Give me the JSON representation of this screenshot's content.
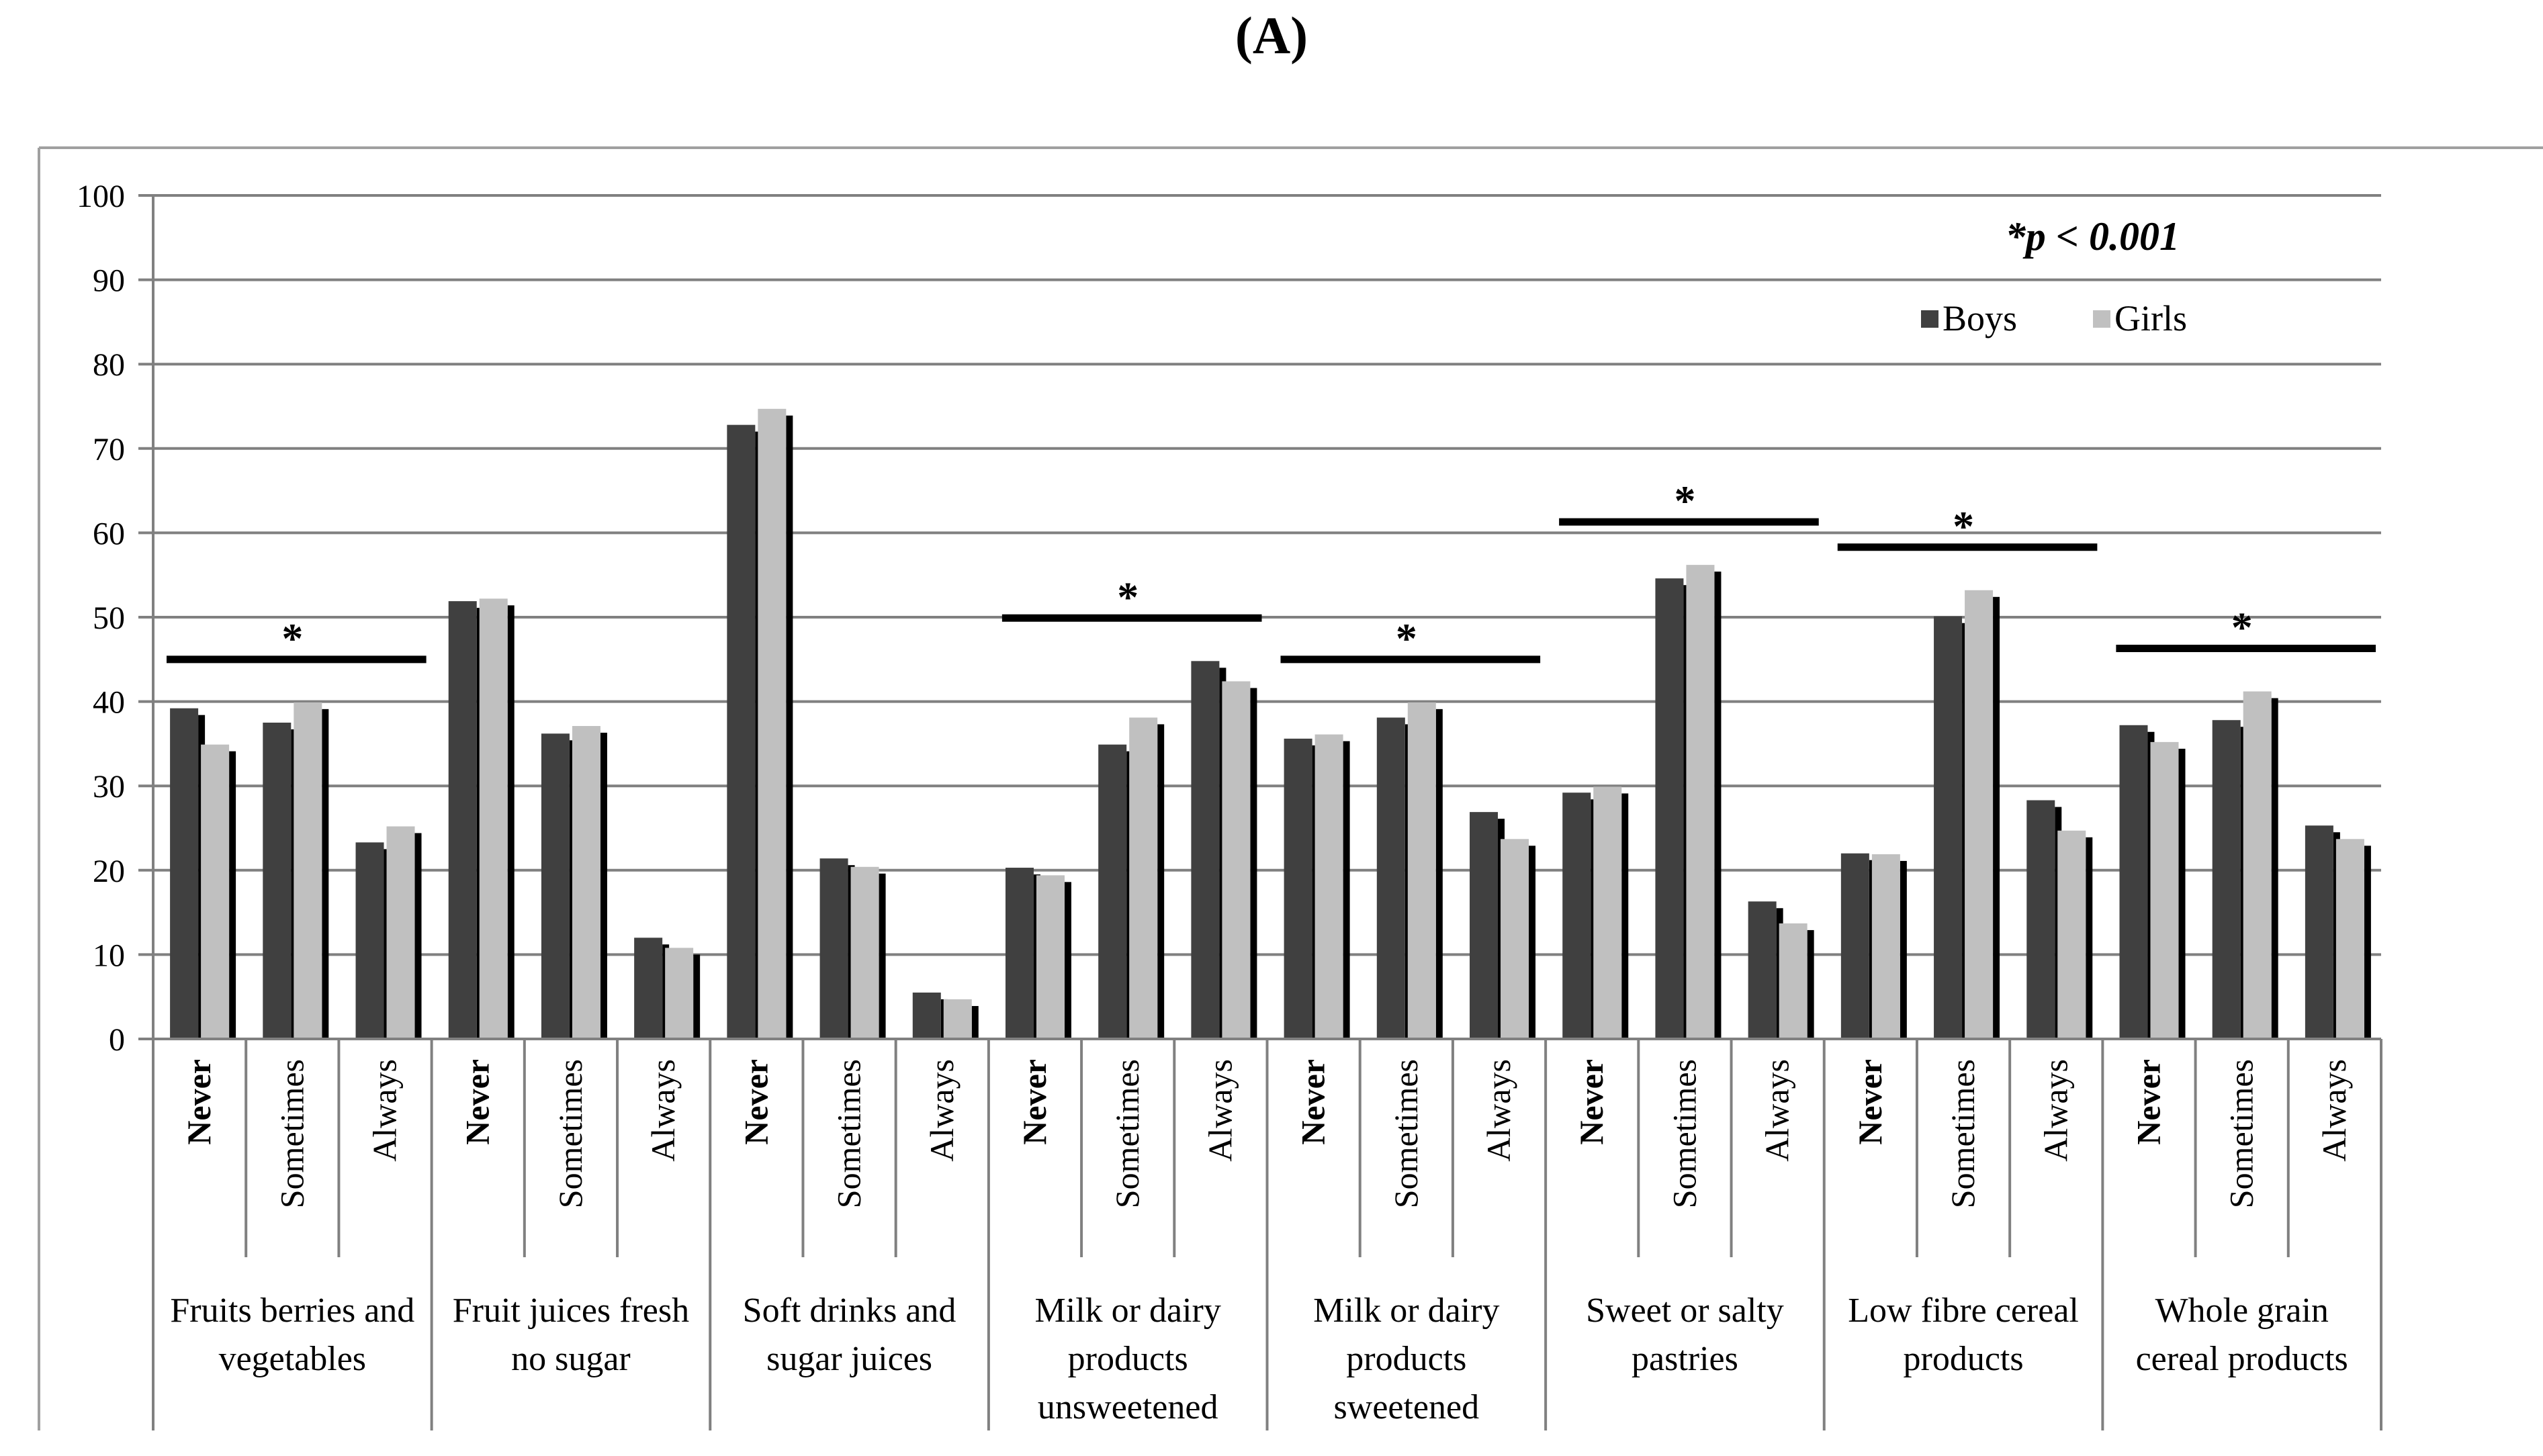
{
  "panel_label": "(A)",
  "chart_data": {
    "type": "bar",
    "title": "",
    "xlabel": "",
    "ylabel": "",
    "ylim": [
      0,
      100
    ],
    "yticks": [
      0,
      10,
      20,
      30,
      40,
      50,
      60,
      70,
      80,
      90,
      100
    ],
    "grid": true,
    "legend_position": "top-right",
    "annotation": "*p < 0.001",
    "significance_marker": "*",
    "colors": {
      "Boys": "#404040",
      "Girls": "#c0c0c0",
      "shadow": "#000000",
      "grid": "#808080"
    },
    "series": [
      {
        "name": "Boys"
      },
      {
        "name": "Girls"
      }
    ],
    "groups": [
      {
        "label_lines": [
          "Fruits berries and",
          "vegetables"
        ],
        "significant": true,
        "categories": [
          "Never",
          "Sometimes",
          "Always"
        ],
        "boys": [
          39.2,
          37.5,
          23.3
        ],
        "girls": [
          34.9,
          39.9,
          25.2
        ]
      },
      {
        "label_lines": [
          "Fruit juices fresh",
          "no sugar"
        ],
        "significant": false,
        "categories": [
          "Never",
          "Sometimes",
          "Always"
        ],
        "boys": [
          51.9,
          36.2,
          12.0
        ],
        "girls": [
          52.2,
          37.1,
          10.8
        ]
      },
      {
        "label_lines": [
          "Soft drinks and",
          "sugar juices"
        ],
        "significant": false,
        "categories": [
          "Never",
          "Sometimes",
          "Always"
        ],
        "boys": [
          72.8,
          21.4,
          5.5
        ],
        "girls": [
          74.7,
          20.4,
          4.7
        ]
      },
      {
        "label_lines": [
          "Milk or dairy",
          "products",
          "unsweetened"
        ],
        "significant": true,
        "categories": [
          "Never",
          "Sometimes",
          "Always"
        ],
        "boys": [
          20.3,
          34.9,
          44.8
        ],
        "girls": [
          19.4,
          38.1,
          42.4
        ]
      },
      {
        "label_lines": [
          "Milk or dairy",
          "products",
          "sweetened"
        ],
        "significant": true,
        "categories": [
          "Never",
          "Sometimes",
          "Always"
        ],
        "boys": [
          35.6,
          38.1,
          26.9
        ],
        "girls": [
          36.1,
          39.9,
          23.7
        ]
      },
      {
        "label_lines": [
          "Sweet or salty",
          "pastries"
        ],
        "significant": true,
        "categories": [
          "Never",
          "Sometimes",
          "Always"
        ],
        "boys": [
          29.2,
          54.6,
          16.3
        ],
        "girls": [
          29.9,
          56.2,
          13.7
        ]
      },
      {
        "label_lines": [
          "Low fibre cereal",
          "products"
        ],
        "significant": true,
        "categories": [
          "Never",
          "Sometimes",
          "Always"
        ],
        "boys": [
          22.0,
          50.1,
          28.3
        ],
        "girls": [
          21.9,
          53.2,
          24.7
        ]
      },
      {
        "label_lines": [
          "Whole grain",
          "cereal products"
        ],
        "significant": true,
        "categories": [
          "Never",
          "Sometimes",
          "Always"
        ],
        "boys": [
          37.2,
          37.8,
          25.3
        ],
        "girls": [
          35.2,
          41.2,
          23.7
        ]
      }
    ]
  }
}
